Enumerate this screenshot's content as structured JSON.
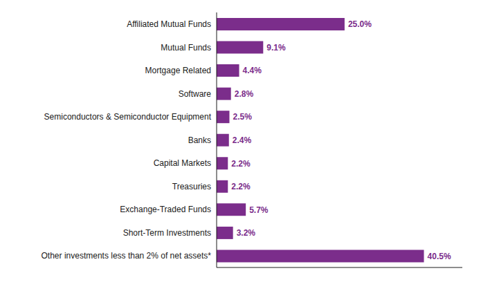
{
  "chart_data": {
    "type": "bar",
    "orientation": "horizontal",
    "categories": [
      "Other investments less than 2% of net assets*",
      "Short-Term Investments",
      "Exchange-Traded Funds",
      "Treasuries",
      "Capital Markets",
      "Banks",
      "Semiconductors & Semiconductor Equipment",
      "Software",
      "Mortgage Related",
      "Mutual Funds",
      "Affiliated Mutual Funds"
    ],
    "values": [
      40.5,
      3.2,
      5.7,
      2.2,
      2.2,
      2.4,
      2.5,
      2.8,
      4.4,
      9.1,
      25.0
    ],
    "value_labels": [
      "40.5%",
      "3.2%",
      "5.7%",
      "2.2%",
      "2.2%",
      "2.4%",
      "2.5%",
      "2.8%",
      "4.4%",
      "9.1%",
      "25.0%"
    ],
    "color": "#7B2D8B",
    "xlim": [
      0,
      48
    ],
    "data_labels": true,
    "tick_labels": "y"
  }
}
